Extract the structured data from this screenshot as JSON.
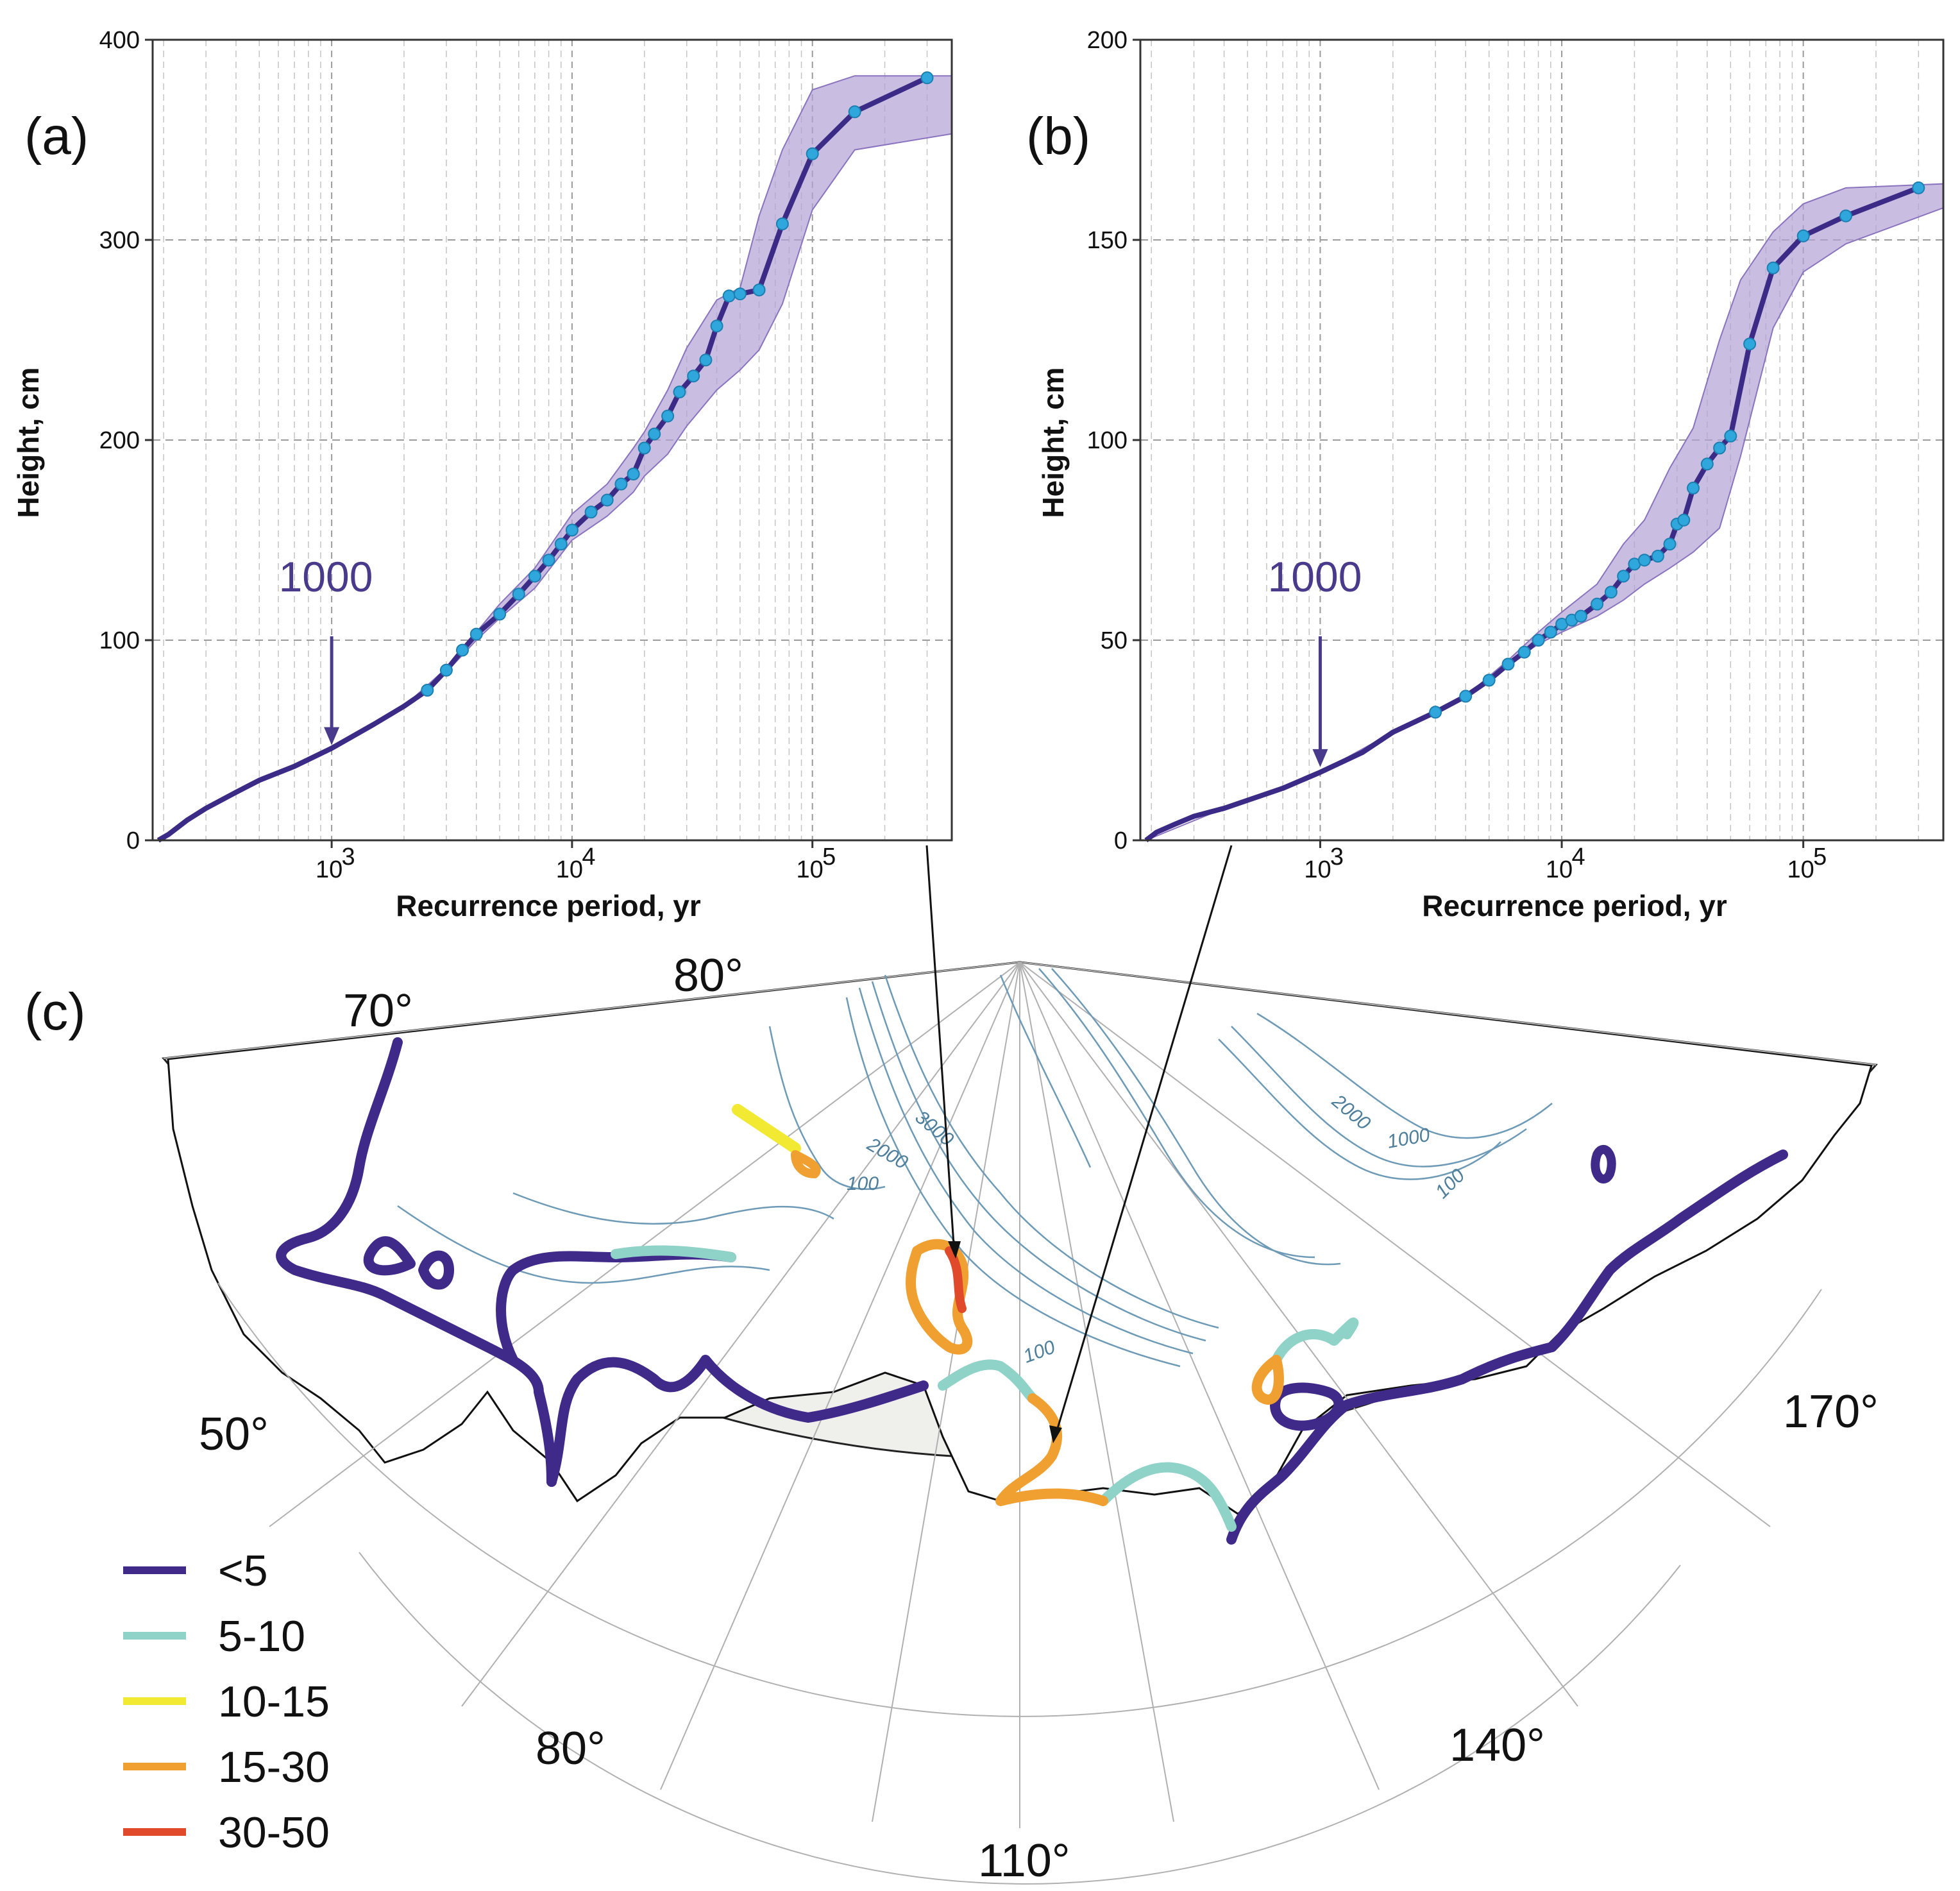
{
  "chart_data": [
    {
      "id": "a",
      "type": "line",
      "panel_label": "(a)",
      "xlabel": "Recurrence period, yr",
      "ylabel": "Height, cm",
      "xscale": "log",
      "xlim": [
        180,
        380000
      ],
      "ylim": [
        0,
        400
      ],
      "yticks": [
        "0",
        "100",
        "200",
        "300",
        "400"
      ],
      "xticks": [
        {
          "value": 1000,
          "base": "10",
          "exp": "3"
        },
        {
          "value": 10000,
          "base": "10",
          "exp": "4"
        },
        {
          "value": 100000,
          "base": "10",
          "exp": "5"
        }
      ],
      "annotation": {
        "text": "1000",
        "x": 1000,
        "y": 45
      },
      "series": [
        {
          "name": "median",
          "x": [
            190,
            210,
            250,
            300,
            400,
            500,
            700,
            1000,
            1500,
            2000,
            2500,
            3000,
            3500,
            4000,
            5000,
            6000,
            7000,
            8000,
            9000,
            10000,
            12000,
            14000,
            16000,
            18000,
            20000,
            22000,
            25000,
            28000,
            32000,
            36000,
            40000,
            45000,
            50000,
            60000,
            75000,
            100000,
            150000,
            300000
          ],
          "values": [
            0,
            3,
            10,
            16,
            24,
            30,
            37,
            46,
            58,
            67,
            75,
            85,
            95,
            103,
            113,
            123,
            132,
            140,
            148,
            155,
            164,
            170,
            178,
            183,
            196,
            203,
            212,
            224,
            232,
            240,
            257,
            272,
            273,
            275,
            308,
            343,
            364,
            381
          ]
        },
        {
          "name": "lower",
          "x": [
            190,
            250,
            400,
            700,
            1000,
            1500,
            2000,
            3000,
            4000,
            5000,
            7000,
            10000,
            14000,
            18000,
            20000,
            25000,
            30000,
            40000,
            50000,
            60000,
            75000,
            100000,
            150000,
            380000
          ],
          "values": [
            0,
            10,
            24,
            37,
            46,
            58,
            67,
            84,
            100,
            111,
            126,
            150,
            162,
            174,
            182,
            193,
            207,
            225,
            235,
            245,
            268,
            315,
            345,
            353
          ]
        },
        {
          "name": "upper",
          "x": [
            190,
            250,
            400,
            700,
            1000,
            1500,
            2000,
            3000,
            4000,
            5000,
            7000,
            10000,
            14000,
            18000,
            20000,
            25000,
            30000,
            40000,
            50000,
            60000,
            75000,
            100000,
            150000,
            380000
          ],
          "values": [
            0,
            10,
            24,
            37,
            46,
            58,
            67,
            86,
            104,
            118,
            136,
            163,
            178,
            196,
            204,
            225,
            246,
            270,
            276,
            312,
            345,
            375,
            382,
            382
          ]
        }
      ]
    },
    {
      "id": "b",
      "type": "line",
      "panel_label": "(b)",
      "xlabel": "Recurrence period, yr",
      "ylabel": "Height, cm",
      "xscale": "log",
      "xlim": [
        180,
        380000
      ],
      "ylim": [
        0,
        200
      ],
      "yticks": [
        "0",
        "50",
        "100",
        "150",
        "200"
      ],
      "xticks": [
        {
          "value": 1000,
          "base": "10",
          "exp": "3"
        },
        {
          "value": 10000,
          "base": "10",
          "exp": "4"
        },
        {
          "value": 100000,
          "base": "10",
          "exp": "5"
        }
      ],
      "annotation": {
        "text": "1000",
        "x": 1000,
        "y": 17
      },
      "series": [
        {
          "name": "median",
          "x": [
            190,
            210,
            250,
            300,
            400,
            500,
            700,
            1000,
            1500,
            2000,
            3000,
            4000,
            5000,
            6000,
            7000,
            8000,
            9000,
            10000,
            11000,
            12000,
            14000,
            16000,
            18000,
            20000,
            22000,
            25000,
            28000,
            30000,
            32000,
            35000,
            40000,
            45000,
            50000,
            60000,
            75000,
            100000,
            150000,
            300000
          ],
          "values": [
            0,
            2,
            4,
            6,
            8,
            10,
            13,
            17,
            22,
            27,
            32,
            36,
            40,
            44,
            47,
            50,
            52,
            54,
            55,
            56,
            59,
            62,
            66,
            69,
            70,
            71,
            74,
            79,
            80,
            88,
            94,
            98,
            101,
            124,
            143,
            151,
            156,
            163
          ]
        },
        {
          "name": "lower",
          "x": [
            190,
            400,
            1000,
            2000,
            4000,
            6000,
            8000,
            10000,
            14000,
            18000,
            22000,
            28000,
            35000,
            45000,
            55000,
            75000,
            100000,
            150000,
            380000
          ],
          "values": [
            0,
            8,
            17,
            27,
            36,
            44,
            49,
            52,
            56,
            60,
            64,
            68,
            72,
            78,
            96,
            128,
            142,
            149,
            158
          ]
        },
        {
          "name": "upper",
          "x": [
            190,
            400,
            1000,
            2000,
            4000,
            6000,
            8000,
            10000,
            14000,
            18000,
            22000,
            28000,
            35000,
            45000,
            55000,
            75000,
            100000,
            150000,
            380000
          ],
          "values": [
            0,
            8,
            17,
            27,
            36,
            45,
            52,
            57,
            64,
            74,
            80,
            93,
            103,
            125,
            140,
            152,
            159,
            163,
            164
          ]
        }
      ]
    }
  ],
  "map": {
    "panel_label": "(c)",
    "longitude_labels": [
      "80°",
      "70°",
      "50°",
      "170°",
      "80°",
      "140°",
      "110°"
    ],
    "contour_labels": [
      "3000",
      "2000",
      "100",
      "2000",
      "1000",
      "100",
      "100"
    ],
    "legend_title": "",
    "legend": [
      {
        "label": "<5",
        "color": "#3f2a8a"
      },
      {
        "label": "5-10",
        "color": "#8fd2c8"
      },
      {
        "label": "10-15",
        "color": "#f2e932"
      },
      {
        "label": "15-30",
        "color": "#f0a030"
      },
      {
        "label": "30-50",
        "color": "#e0492a"
      }
    ]
  },
  "colors": {
    "line": "#3b2a86",
    "marker_fill": "#2fa7dc",
    "marker_edge": "#1d7fb0",
    "band": "#b3a1d6",
    "band_edge": "#8a73bf",
    "annotation": "#4a3a8c",
    "land": "#efefec",
    "contour": "#5d8fae"
  }
}
